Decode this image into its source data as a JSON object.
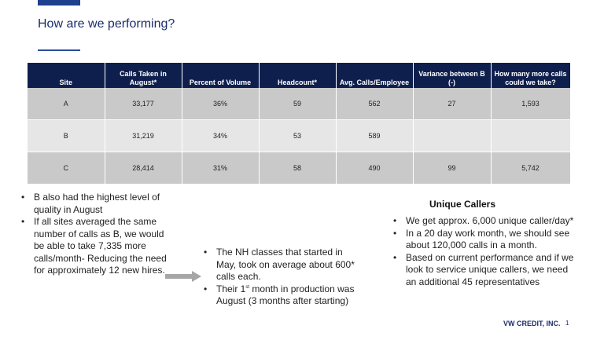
{
  "slide": {
    "title": "How are we performing?",
    "footer_brand": "VW CREDIT, INC.",
    "page_number": "1"
  },
  "table": {
    "headers": {
      "site": "Site",
      "calls_taken": "Calls Taken in August*",
      "percent_volume": "Percent of Volume",
      "headcount": "Headcount*",
      "avg_calls": "Avg. Calls/Employee",
      "variance": "Variance between B (-)",
      "how_many_more": "How many more calls could we take?"
    },
    "rows": [
      {
        "site": "A",
        "calls_taken": "33,177",
        "percent_volume": "36%",
        "headcount": "59",
        "avg_calls": "562",
        "variance": "27",
        "how_many_more": "1,593"
      },
      {
        "site": "B",
        "calls_taken": "31,219",
        "percent_volume": "34%",
        "headcount": "53",
        "avg_calls": "589",
        "variance": "",
        "how_many_more": ""
      },
      {
        "site": "C",
        "calls_taken": "28,414",
        "percent_volume": "31%",
        "headcount": "58",
        "avg_calls": "490",
        "variance": "99",
        "how_many_more": "5,742"
      }
    ]
  },
  "left_bullets": [
    "B also had the highest level of quality in August",
    "If all sites averaged the same number of calls as B, we would be able to take 7,335 more calls/month- Reducing the need for approximately 12 new hires."
  ],
  "middle_bullets": {
    "item1": "The NH classes that started in May, took on average about 600* calls each.",
    "item2_pre": "Their 1",
    "item2_sup": "st",
    "item2_post": " month in production was August (3 months after starting)"
  },
  "unique_callers": {
    "heading": "Unique Callers",
    "bullets": [
      "We get approx. 6,000 unique caller/day*",
      "In a 20 day work month, we should see about 120,000 calls in a month.",
      "Based on current performance and if we look to service unique callers, we need an additional 45 representatives"
    ]
  },
  "icons": {
    "arrow": "right-arrow-icon",
    "arrow_color": "#a6a6a6"
  },
  "colors": {
    "header_bg": "#0f1f4d",
    "row_dark": "#c9c9c9",
    "row_light": "#e6e6e6",
    "brand": "#1b2d6b"
  }
}
